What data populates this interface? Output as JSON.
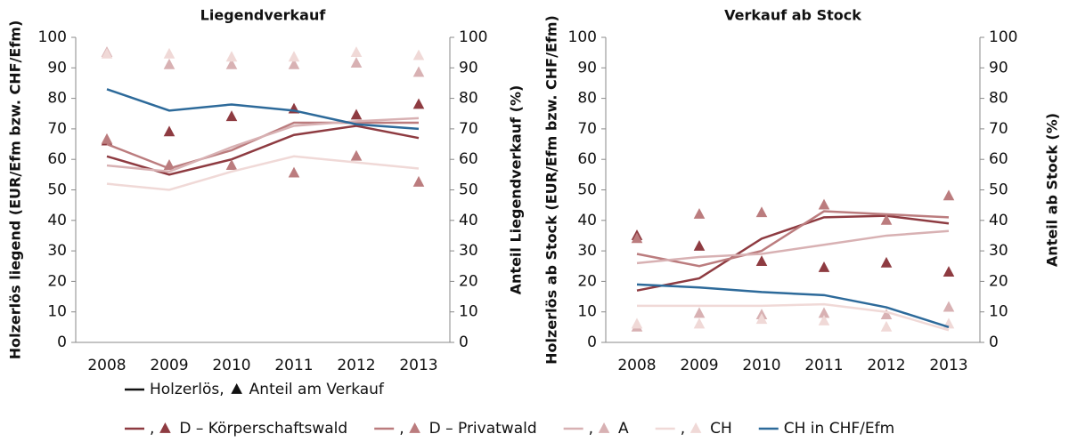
{
  "chart_data": [
    {
      "type": "line",
      "title": "Liegendverkauf",
      "y_label": "Holzerlös liegend (EUR/Efm bzw. CHF/Efm)",
      "y2_label": "Anteil Liegendverkauf (%)",
      "categories": [
        "2008",
        "2009",
        "2010",
        "2011",
        "2012",
        "2013"
      ],
      "ylim": [
        0,
        100
      ],
      "yticks": [
        0,
        10,
        20,
        30,
        40,
        50,
        60,
        70,
        80,
        90,
        100
      ],
      "y2lim": [
        0,
        100
      ],
      "y2ticks": [
        0,
        10,
        20,
        30,
        40,
        50,
        60,
        70,
        80,
        90,
        100
      ],
      "series": [
        {
          "name": "D – Körperschaftswald",
          "color": "#8e3b41",
          "values": [
            61,
            55,
            60,
            68,
            71,
            67
          ],
          "shares": [
            66,
            69,
            74,
            76.5,
            74.5,
            78
          ]
        },
        {
          "name": "D – Privatwald",
          "color": "#bb7c7e",
          "values": [
            65,
            57,
            63,
            72,
            72,
            72
          ],
          "shares": [
            66.5,
            58,
            58,
            55.5,
            61,
            52.5
          ]
        },
        {
          "name": "A",
          "color": "#d8b1b3",
          "values": [
            58,
            56,
            64,
            71,
            72.5,
            73.5
          ],
          "shares": [
            95,
            91,
            91,
            91,
            91.5,
            88.5
          ]
        },
        {
          "name": "CH",
          "color": "#f0d9d7",
          "values": [
            52,
            50,
            56,
            61,
            59,
            57
          ],
          "shares": [
            94.5,
            94.5,
            93.5,
            93.5,
            95,
            94
          ]
        },
        {
          "name": "CH in CHF/Efm",
          "color": "#2d6a9a",
          "values": [
            83,
            76,
            78,
            76,
            71.5,
            70
          ]
        }
      ]
    },
    {
      "type": "line",
      "title": "Verkauf ab Stock",
      "y_label": "Holzerlös ab Stock (EUR/Efm bzw. CHF/Efm)",
      "y2_label": "Anteil ab Stock (%)",
      "categories": [
        "2008",
        "2009",
        "2010",
        "2011",
        "2012",
        "2013"
      ],
      "ylim": [
        0,
        100
      ],
      "yticks": [
        0,
        10,
        20,
        30,
        40,
        50,
        60,
        70,
        80,
        90,
        100
      ],
      "y2lim": [
        0,
        100
      ],
      "y2ticks": [
        0,
        10,
        20,
        30,
        40,
        50,
        60,
        70,
        80,
        90,
        100
      ],
      "series": [
        {
          "name": "D – Körperschaftswald",
          "color": "#8e3b41",
          "values": [
            17,
            21,
            34,
            41,
            41.5,
            39
          ],
          "shares": [
            35,
            31.5,
            26.5,
            24.5,
            26,
            23
          ]
        },
        {
          "name": "D – Privatwald",
          "color": "#bb7c7e",
          "values": [
            29,
            25,
            30,
            43,
            42,
            41
          ],
          "shares": [
            34,
            42,
            42.5,
            45,
            40,
            48
          ]
        },
        {
          "name": "A",
          "color": "#d8b1b3",
          "values": [
            26,
            28,
            29,
            32,
            35,
            36.5
          ],
          "shares": [
            5,
            9.5,
            9,
            9.5,
            9,
            11.5
          ]
        },
        {
          "name": "CH",
          "color": "#f0d9d7",
          "values": [
            12,
            12,
            12,
            12.5,
            10,
            4
          ],
          "shares": [
            6,
            6,
            7.5,
            7,
            5,
            6
          ]
        },
        {
          "name": "CH in CHF/Efm",
          "color": "#2d6a9a",
          "values": [
            19,
            18,
            16.5,
            15.5,
            11.5,
            5
          ]
        }
      ]
    }
  ],
  "legend": {
    "line": "Holzerlös,",
    "marker": "Anteil am Verkauf",
    "separator": ","
  }
}
